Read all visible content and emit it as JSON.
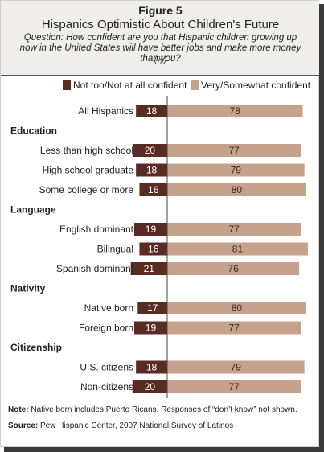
{
  "header": {
    "figure": "Figure 5",
    "title": "Hispanics Optimistic About Children's Future",
    "question": "Question: How confident are you that Hispanic children growing up now in the United States will have better jobs and make more money than you?",
    "unit": "(%)"
  },
  "colors": {
    "negative": "#5a2b22",
    "positive": "#c6a18c",
    "header_bg": "#efeeed"
  },
  "chart_data": {
    "type": "bar",
    "orientation": "horizontal-diverging",
    "legend_position": "top",
    "series": [
      {
        "name": "Not too/Not at all confident",
        "key": "not_confident"
      },
      {
        "name": "Very/Somewhat confident",
        "key": "confident"
      }
    ],
    "rows": [
      {
        "kind": "bar",
        "label": "All Hispanics",
        "not_confident": 18,
        "confident": 78
      },
      {
        "kind": "section",
        "label": "Education"
      },
      {
        "kind": "bar",
        "label": "Less than high school",
        "not_confident": 20,
        "confident": 77
      },
      {
        "kind": "bar",
        "label": "High school graduate",
        "not_confident": 18,
        "confident": 79
      },
      {
        "kind": "bar",
        "label": "Some college or more",
        "not_confident": 16,
        "confident": 80
      },
      {
        "kind": "section",
        "label": "Language"
      },
      {
        "kind": "bar",
        "label": "English dominant",
        "not_confident": 19,
        "confident": 77
      },
      {
        "kind": "bar",
        "label": "Bilingual",
        "not_confident": 16,
        "confident": 81
      },
      {
        "kind": "bar",
        "label": "Spanish dominant",
        "not_confident": 21,
        "confident": 76
      },
      {
        "kind": "section",
        "label": "Nativity"
      },
      {
        "kind": "bar",
        "label": "Native born",
        "not_confident": 17,
        "confident": 80
      },
      {
        "kind": "bar",
        "label": "Foreign born",
        "not_confident": 19,
        "confident": 77
      },
      {
        "kind": "section",
        "label": "Citizenship"
      },
      {
        "kind": "bar",
        "label": "U.S. citizens",
        "not_confident": 18,
        "confident": 79
      },
      {
        "kind": "bar",
        "label": "Non-citizens",
        "not_confident": 20,
        "confident": 77
      }
    ]
  },
  "notes": {
    "note_label": "Note:",
    "note_text": "Native born includes Puerto Ricans. Responses of “don’t know” not shown.",
    "source_label": "Source:",
    "source_text": "Pew Hispanic Center, 2007 National Survey of Latinos"
  }
}
